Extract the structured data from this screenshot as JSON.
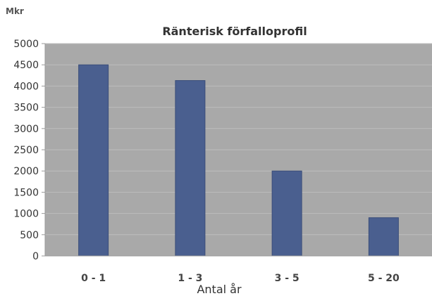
{
  "chart_data": {
    "type": "bar",
    "title": "Ränterisk förfalloprofil",
    "unit_label": "Mkr",
    "xlabel": "Antal år",
    "ylabel": "",
    "categories": [
      "0 - 1",
      "1 - 3",
      "3 - 5",
      "5 - 20"
    ],
    "values": [
      4500,
      4130,
      2000,
      900
    ],
    "ylim": [
      0,
      5000
    ],
    "yticks": [
      "0",
      "500",
      "1000",
      "1500",
      "2000",
      "2500",
      "3000",
      "3500",
      "4000",
      "4500",
      "5000"
    ],
    "grid": true,
    "legend": "none",
    "colors": {
      "bar": "#4a5f8f",
      "bar_edge": "#3b4e7a",
      "plot_background": "#a9a9a9",
      "gridline": "#bdbdbd"
    }
  }
}
